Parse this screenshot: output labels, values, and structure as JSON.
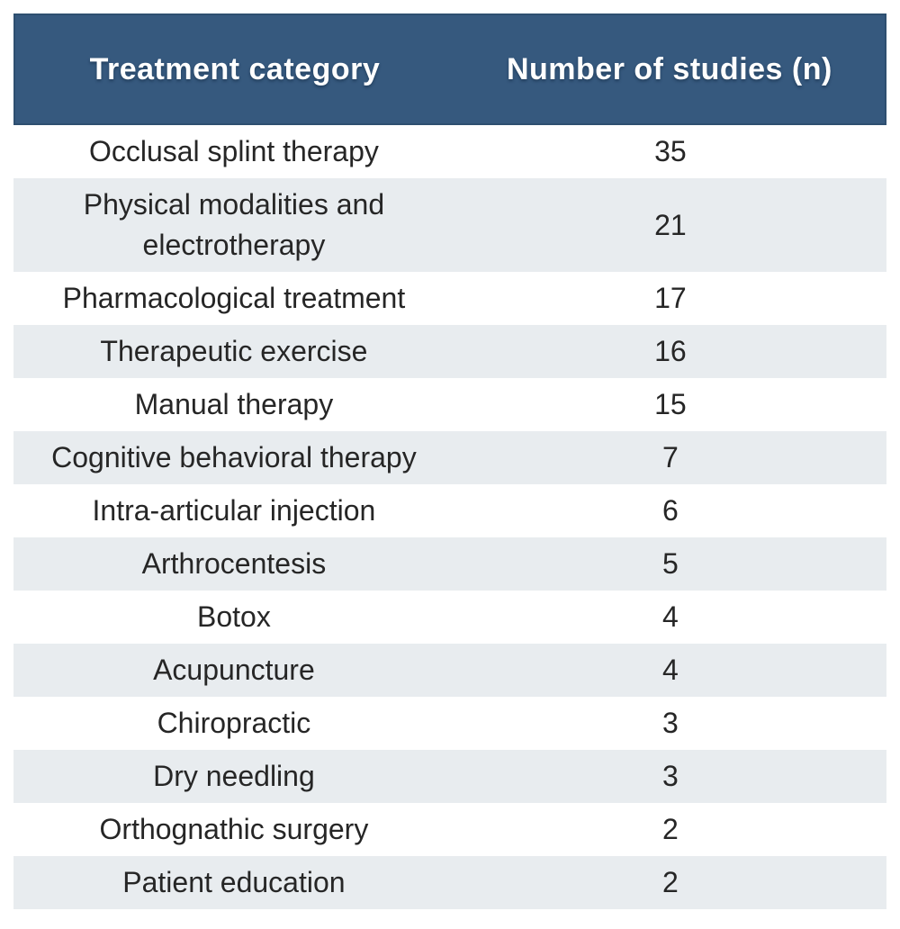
{
  "table": {
    "header": {
      "col1": "Treatment category",
      "col2": "Number of studies (n)"
    },
    "rows": [
      {
        "category": "Occlusal splint therapy",
        "n": "35"
      },
      {
        "category": "Physical modalities and electrotherapy",
        "n": "21"
      },
      {
        "category": "Pharmacological treatment",
        "n": "17"
      },
      {
        "category": "Therapeutic exercise",
        "n": "16"
      },
      {
        "category": "Manual therapy",
        "n": "15"
      },
      {
        "category": "Cognitive behavioral therapy",
        "n": "7"
      },
      {
        "category": "Intra-articular injection",
        "n": "6"
      },
      {
        "category": "Arthrocentesis",
        "n": "5"
      },
      {
        "category": "Botox",
        "n": "4"
      },
      {
        "category": "Acupuncture",
        "n": "4"
      },
      {
        "category": "Chiropractic",
        "n": "3"
      },
      {
        "category": "Dry needling",
        "n": "3"
      },
      {
        "category": "Orthognathic surgery",
        "n": "2"
      },
      {
        "category": "Patient education",
        "n": "2"
      }
    ]
  },
  "colors": {
    "header_bg": "#36597E",
    "header_border": "#2E4F70",
    "header_text": "#FFFFFF",
    "alt_row_bg": "#E8ECEF",
    "body_text": "#262626",
    "page_bg": "#FFFFFF"
  },
  "chart_data": {
    "type": "table",
    "title": "",
    "columns": [
      "Treatment category",
      "Number of studies (n)"
    ],
    "categories": [
      "Occlusal splint therapy",
      "Physical modalities and electrotherapy",
      "Pharmacological treatment",
      "Therapeutic exercise",
      "Manual therapy",
      "Cognitive behavioral therapy",
      "Intra-articular injection",
      "Arthrocentesis",
      "Botox",
      "Acupuncture",
      "Chiropractic",
      "Dry needling",
      "Orthognathic surgery",
      "Patient education"
    ],
    "values": [
      35,
      21,
      17,
      16,
      15,
      7,
      6,
      5,
      4,
      4,
      3,
      3,
      2,
      2
    ],
    "layout": {
      "alternating_row_shading": true,
      "cell_alignment": "center",
      "header_style": "dark-blue-bar"
    }
  }
}
